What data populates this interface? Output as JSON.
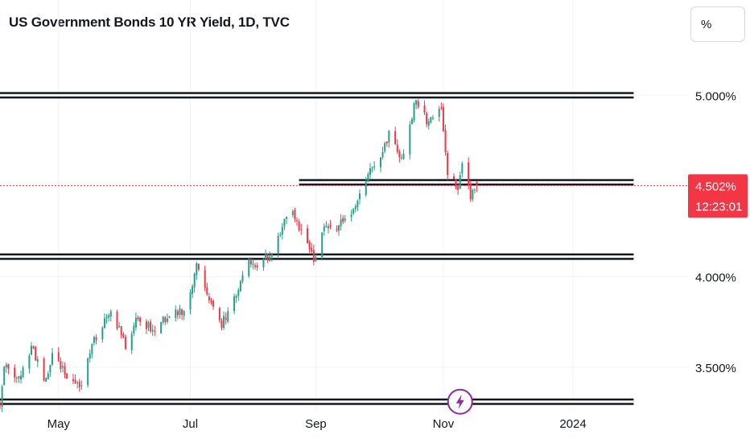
{
  "header": {
    "title": "US Government Bonds 10 YR Yield, 1D, TVC",
    "unit_button": "%"
  },
  "colors": {
    "up": "#22a08a",
    "down": "#f23645",
    "level_line_outer": "#131722",
    "level_line_inner": "#ffffff",
    "grid": "#f0f3fa",
    "price_tag": "#f23645",
    "event_icon": "#8e2ba6"
  },
  "price_tag": {
    "price": "4.502%",
    "countdown": "12:23:01",
    "value": 4.502
  },
  "chart_data": {
    "type": "candlestick",
    "y_scale": "linear",
    "y_range": [
      3.26,
      5.25
    ],
    "x_range": [
      "2023-04-03",
      "2024-02-26"
    ],
    "y_ticks": [
      {
        "label": "5.000%",
        "value": 5.0
      },
      {
        "label": "4.000%",
        "value": 4.0
      },
      {
        "label": "3.500%",
        "value": 3.5
      }
    ],
    "x_ticks": [
      {
        "label": "May",
        "date": "2023-05-01"
      },
      {
        "label": "Jul",
        "date": "2023-07-03"
      },
      {
        "label": "Sep",
        "date": "2023-09-01"
      },
      {
        "label": "Nov",
        "date": "2023-11-01"
      },
      {
        "label": "2024",
        "date": "2024-01-02"
      }
    ],
    "grid": true,
    "horizontal_levels": [
      {
        "value": 5.0,
        "from": "2023-04-03",
        "to": "2024-01-31"
      },
      {
        "value": 4.52,
        "from": "2023-08-24",
        "to": "2024-01-31"
      },
      {
        "value": 4.11,
        "from": "2023-04-03",
        "to": "2024-01-31"
      },
      {
        "value": 3.31,
        "from": "2023-04-03",
        "to": "2024-01-31"
      }
    ],
    "event_marker": {
      "date": "2023-11-09",
      "icon": "lightning-icon"
    },
    "path": [
      [
        "2023-04-03",
        3.3
      ],
      [
        "2023-04-05",
        3.52
      ],
      [
        "2023-04-12",
        3.43
      ],
      [
        "2023-04-18",
        3.62
      ],
      [
        "2023-04-25",
        3.42
      ],
      [
        "2023-04-28",
        3.58
      ],
      [
        "2023-05-05",
        3.45
      ],
      [
        "2023-05-12",
        3.4
      ],
      [
        "2023-05-18",
        3.65
      ],
      [
        "2023-05-26",
        3.82
      ],
      [
        "2023-06-02",
        3.62
      ],
      [
        "2023-06-08",
        3.78
      ],
      [
        "2023-06-15",
        3.7
      ],
      [
        "2023-06-22",
        3.78
      ],
      [
        "2023-06-30",
        3.81
      ],
      [
        "2023-07-06",
        4.05
      ],
      [
        "2023-07-12",
        3.88
      ],
      [
        "2023-07-18",
        3.74
      ],
      [
        "2023-07-24",
        3.87
      ],
      [
        "2023-07-31",
        4.08
      ],
      [
        "2023-08-04",
        4.06
      ],
      [
        "2023-08-10",
        4.12
      ],
      [
        "2023-08-17",
        4.3
      ],
      [
        "2023-08-21",
        4.34
      ],
      [
        "2023-08-25",
        4.24
      ],
      [
        "2023-08-31",
        4.09
      ],
      [
        "2023-09-05",
        4.26
      ],
      [
        "2023-09-12",
        4.28
      ],
      [
        "2023-09-19",
        4.36
      ],
      [
        "2023-09-25",
        4.54
      ],
      [
        "2023-10-02",
        4.68
      ],
      [
        "2023-10-06",
        4.78
      ],
      [
        "2023-10-12",
        4.65
      ],
      [
        "2023-10-19",
        4.98
      ],
      [
        "2023-10-24",
        4.86
      ],
      [
        "2023-10-31",
        4.92
      ],
      [
        "2023-11-03",
        4.58
      ],
      [
        "2023-11-08",
        4.48
      ],
      [
        "2023-11-10",
        4.63
      ],
      [
        "2023-11-14",
        4.44
      ],
      [
        "2023-11-17",
        4.502
      ]
    ]
  }
}
